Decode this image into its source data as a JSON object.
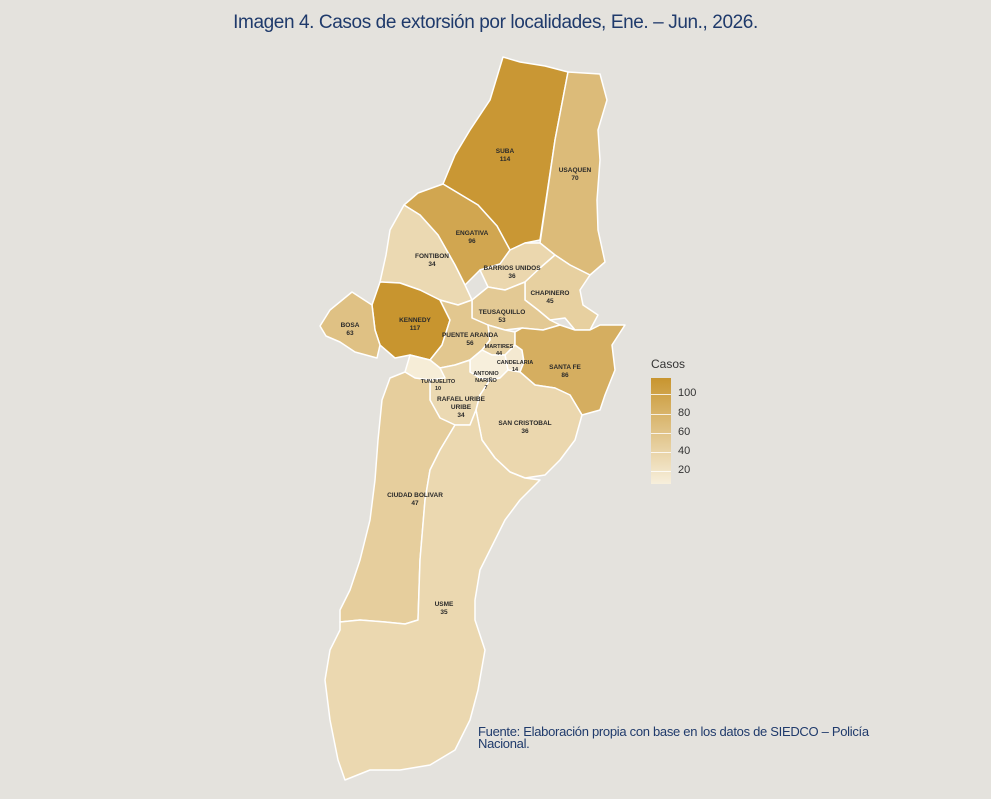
{
  "title": "Imagen 4. Casos de extorsión por localidades, Ene. – Jun., 2026.",
  "map_data": {
    "variable": "Casos",
    "regions": [
      {
        "name": "SUBA",
        "value": "114"
      },
      {
        "name": "USAQUEN",
        "value": "70"
      },
      {
        "name": "ENGATIVA",
        "value": "96"
      },
      {
        "name": "FONTIBON",
        "value": "34"
      },
      {
        "name": "BARRIOS UNIDOS",
        "value": "36"
      },
      {
        "name": "CHAPINERO",
        "value": "45"
      },
      {
        "name": "TEUSAQUILLO",
        "value": "53"
      },
      {
        "name": "KENNEDY",
        "value": "117"
      },
      {
        "name": "BOSA",
        "value": "63"
      },
      {
        "name": "PUENTE ARANDA",
        "value": "56"
      },
      {
        "name": "MARTIRES",
        "value": "44"
      },
      {
        "name": "CANDELARIA",
        "value": "14"
      },
      {
        "name": "SANTA FE",
        "value": "86"
      },
      {
        "name": "ANTONIO NARIÑO",
        "value": "7"
      },
      {
        "name": "TUNJUELITO",
        "value": "10"
      },
      {
        "name": "RAFAEL URIBE URIBE",
        "value": "34"
      },
      {
        "name": "SAN CRISTOBAL",
        "value": "36"
      },
      {
        "name": "CIUDAD BOLIVAR",
        "value": "47"
      },
      {
        "name": "USME",
        "value": "35"
      }
    ],
    "legend": {
      "title": "Casos",
      "ticks": [
        "100",
        "80",
        "60",
        "40",
        "20"
      ],
      "range": [
        7,
        117
      ],
      "color_low": "#f7efdc",
      "color_high": "#c8952f"
    }
  },
  "source": "Fuente: Elaboración propia con base en los datos de SIEDCO – Policía Nacional."
}
